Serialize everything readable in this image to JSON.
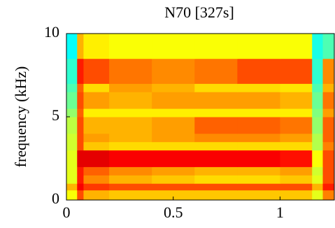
{
  "chart_data": {
    "type": "heatmap",
    "title": "N70 [327s]",
    "y_label": "frequency (kHz)",
    "colormap": "jet",
    "x_edges": [
      0,
      0.05,
      0.08,
      0.2,
      0.4,
      0.6,
      0.8,
      1.0,
      1.15,
      1.2,
      1.254
    ],
    "y_edges": [
      0,
      0.6,
      1.0,
      1.5,
      2.0,
      3.0,
      3.5,
      4.0,
      5.0,
      5.5,
      6.5,
      7.0,
      8.5,
      10
    ],
    "values": [
      [
        0.62,
        0.8,
        0.7,
        0.68,
        0.68,
        0.68,
        0.68,
        0.68,
        0.6,
        0.75
      ],
      [
        0.7,
        0.88,
        0.82,
        0.8,
        0.8,
        0.8,
        0.8,
        0.8,
        0.7,
        0.85
      ],
      [
        0.6,
        0.85,
        0.74,
        0.7,
        0.68,
        0.66,
        0.66,
        0.68,
        0.6,
        0.8
      ],
      [
        0.6,
        0.85,
        0.78,
        0.74,
        0.72,
        0.7,
        0.7,
        0.72,
        0.58,
        0.8
      ],
      [
        0.6,
        0.9,
        0.9,
        0.88,
        0.88,
        0.88,
        0.88,
        0.86,
        0.62,
        0.8
      ],
      [
        0.58,
        0.8,
        0.68,
        0.66,
        0.66,
        0.66,
        0.66,
        0.66,
        0.55,
        0.75
      ],
      [
        0.58,
        0.8,
        0.72,
        0.7,
        0.72,
        0.74,
        0.74,
        0.72,
        0.55,
        0.78
      ],
      [
        0.56,
        0.8,
        0.7,
        0.7,
        0.72,
        0.78,
        0.78,
        0.76,
        0.52,
        0.78
      ],
      [
        0.52,
        0.78,
        0.64,
        0.64,
        0.64,
        0.64,
        0.64,
        0.64,
        0.5,
        0.72
      ],
      [
        0.48,
        0.8,
        0.72,
        0.7,
        0.72,
        0.72,
        0.72,
        0.7,
        0.48,
        0.76
      ],
      [
        0.45,
        0.78,
        0.66,
        0.72,
        0.7,
        0.66,
        0.66,
        0.65,
        0.45,
        0.7
      ],
      [
        0.42,
        0.85,
        0.8,
        0.76,
        0.74,
        0.76,
        0.8,
        0.8,
        0.42,
        0.74
      ],
      [
        0.38,
        0.7,
        0.64,
        0.62,
        0.62,
        0.62,
        0.62,
        0.62,
        0.4,
        0.45
      ]
    ],
    "xlim": [
      0,
      1.254
    ],
    "ylim": [
      0,
      10
    ],
    "xticks": [
      0,
      0.5,
      1
    ],
    "yticks": [
      0,
      5,
      10
    ]
  }
}
